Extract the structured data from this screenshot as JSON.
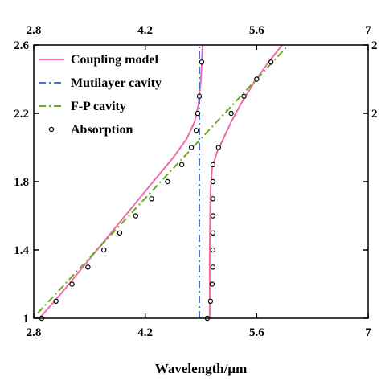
{
  "chart_data": {
    "type": "line",
    "title": "",
    "xlabel": "Wavelength/μm",
    "ylabel": "",
    "xlim": [
      2.8,
      7.0
    ],
    "ylim": [
      1.0,
      2.6
    ],
    "x_ticks": [
      2.8,
      4.2,
      5.6,
      7.0
    ],
    "x_tick_labels": [
      "2.8",
      "4.2",
      "5.6",
      "7"
    ],
    "y_ticks": [
      1.0,
      1.4,
      1.8,
      2.2,
      2.6
    ],
    "y_tick_labels": [
      "1",
      "1.4",
      "1.8",
      "2.2",
      "2.6"
    ],
    "top_axis_tick_labels": [
      "2.8",
      "4.2",
      "5.6",
      "7"
    ],
    "right_axis_tick_labels": [
      "2",
      "2"
    ],
    "grid": false,
    "legend_position": "top-left",
    "series": [
      {
        "name": "Coupling model",
        "style": "solid",
        "color": "#f06aa8",
        "branches": [
          {
            "x": [
              2.87,
              3.1,
              3.4,
              3.7,
              4.0,
              4.3,
              4.55,
              4.72,
              4.82,
              4.87,
              4.9,
              4.92
            ],
            "y": [
              1.0,
              1.12,
              1.29,
              1.46,
              1.63,
              1.8,
              1.94,
              2.05,
              2.15,
              2.25,
              2.4,
              2.6
            ]
          },
          {
            "x": [
              5.01,
              5.01,
              5.02,
              5.04,
              5.1,
              5.18,
              5.28,
              5.42,
              5.58,
              5.75,
              5.92
            ],
            "y": [
              1.0,
              1.4,
              1.75,
              1.88,
              1.97,
              2.05,
              2.15,
              2.27,
              2.39,
              2.5,
              2.6
            ]
          }
        ]
      },
      {
        "name": "Mutilayer cavity",
        "style": "dashdot",
        "color": "#4a6fd8",
        "x": [
          4.88,
          4.88
        ],
        "y": [
          1.0,
          2.6
        ]
      },
      {
        "name": "F-P cavity",
        "style": "dashdot",
        "color": "#6aaa1e",
        "x": [
          2.85,
          6.0
        ],
        "y": [
          1.03,
          2.6
        ]
      },
      {
        "name": "Absorption",
        "style": "marker",
        "marker": "open-circle",
        "color": "#000000",
        "x": [
          2.9,
          3.08,
          3.28,
          3.48,
          3.68,
          3.88,
          4.08,
          4.28,
          4.48,
          4.66,
          4.78,
          4.84,
          4.86,
          4.88,
          4.91,
          4.98,
          5.02,
          5.04,
          5.05,
          5.05,
          5.05,
          5.05,
          5.05,
          5.05,
          5.05,
          5.12,
          5.28,
          5.44,
          5.6,
          5.78
        ],
        "y": [
          1.0,
          1.1,
          1.2,
          1.3,
          1.4,
          1.5,
          1.6,
          1.7,
          1.8,
          1.9,
          2.0,
          2.1,
          2.2,
          2.3,
          2.5,
          1.0,
          1.1,
          1.2,
          1.3,
          1.4,
          1.5,
          1.6,
          1.7,
          1.8,
          1.9,
          2.0,
          2.2,
          2.3,
          2.4,
          2.5
        ]
      }
    ]
  }
}
